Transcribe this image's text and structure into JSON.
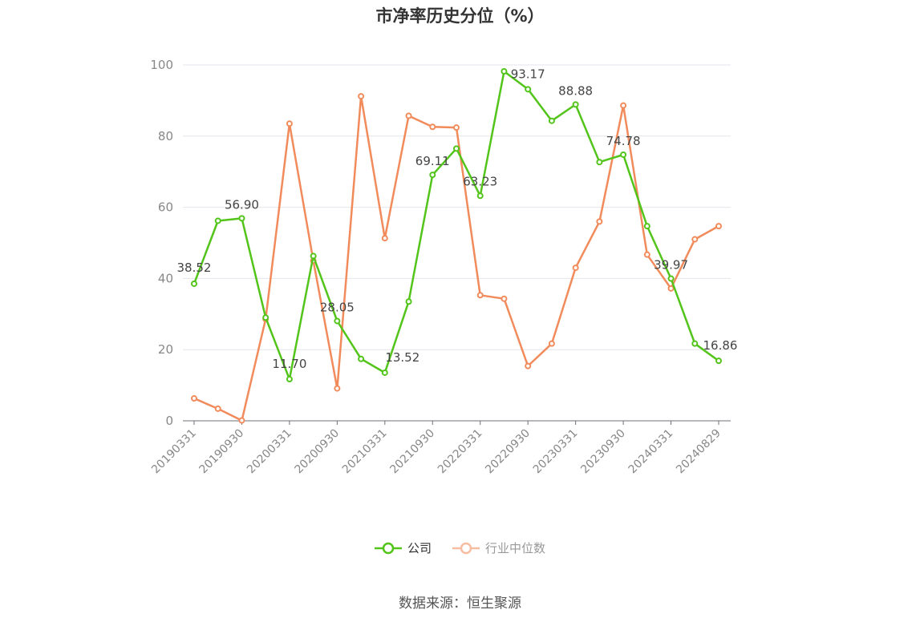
{
  "chart_data": {
    "type": "line",
    "title": "市净率历史分位（%）",
    "xlabel": "",
    "ylabel": "",
    "ylim": [
      0,
      100
    ],
    "yticks": [
      0,
      20,
      40,
      60,
      80,
      100
    ],
    "grid": true,
    "legend_position": "bottom",
    "x": [
      "20190331",
      "20190630",
      "20190930",
      "20191231",
      "20200331",
      "20200630",
      "20200930",
      "20201231",
      "20210331",
      "20210630",
      "20210930",
      "20211231",
      "20220331",
      "20220630",
      "20220930",
      "20221231",
      "20230331",
      "20230630",
      "20230930",
      "20231231",
      "20240331",
      "20240630",
      "20240829"
    ],
    "x_tick_labels": [
      "20190331",
      "20190930",
      "20200331",
      "20200930",
      "20210331",
      "20210930",
      "20220331",
      "20220930",
      "20230331",
      "20230930",
      "20240331",
      "20240829"
    ],
    "series": [
      {
        "name": "公司",
        "color": "#52c41a",
        "values": [
          38.52,
          56.2,
          56.9,
          29.0,
          11.7,
          46.3,
          28.05,
          17.4,
          13.52,
          33.5,
          69.11,
          76.5,
          63.23,
          98.2,
          93.17,
          84.3,
          88.88,
          72.7,
          74.78,
          54.7,
          39.97,
          21.7,
          16.86
        ],
        "labels": [
          "38.52",
          "",
          "56.90",
          "",
          "11.70",
          "",
          "28.05",
          "",
          "13.52",
          "",
          "69.11",
          "",
          "63.23",
          "",
          "93.17",
          "",
          "88.88",
          "",
          "74.78",
          "",
          "39.97",
          "",
          "16.86"
        ]
      },
      {
        "name": "行业中位数",
        "color": "#f28b5b",
        "values": [
          6.3,
          3.4,
          0.1,
          28.6,
          83.5,
          45.0,
          9.1,
          91.2,
          51.3,
          85.7,
          82.6,
          82.4,
          35.3,
          34.3,
          15.4,
          21.7,
          43.0,
          56.0,
          88.6,
          46.7,
          37.2,
          51.0,
          54.7
        ]
      }
    ]
  },
  "source_text": "数据来源：恒生聚源"
}
